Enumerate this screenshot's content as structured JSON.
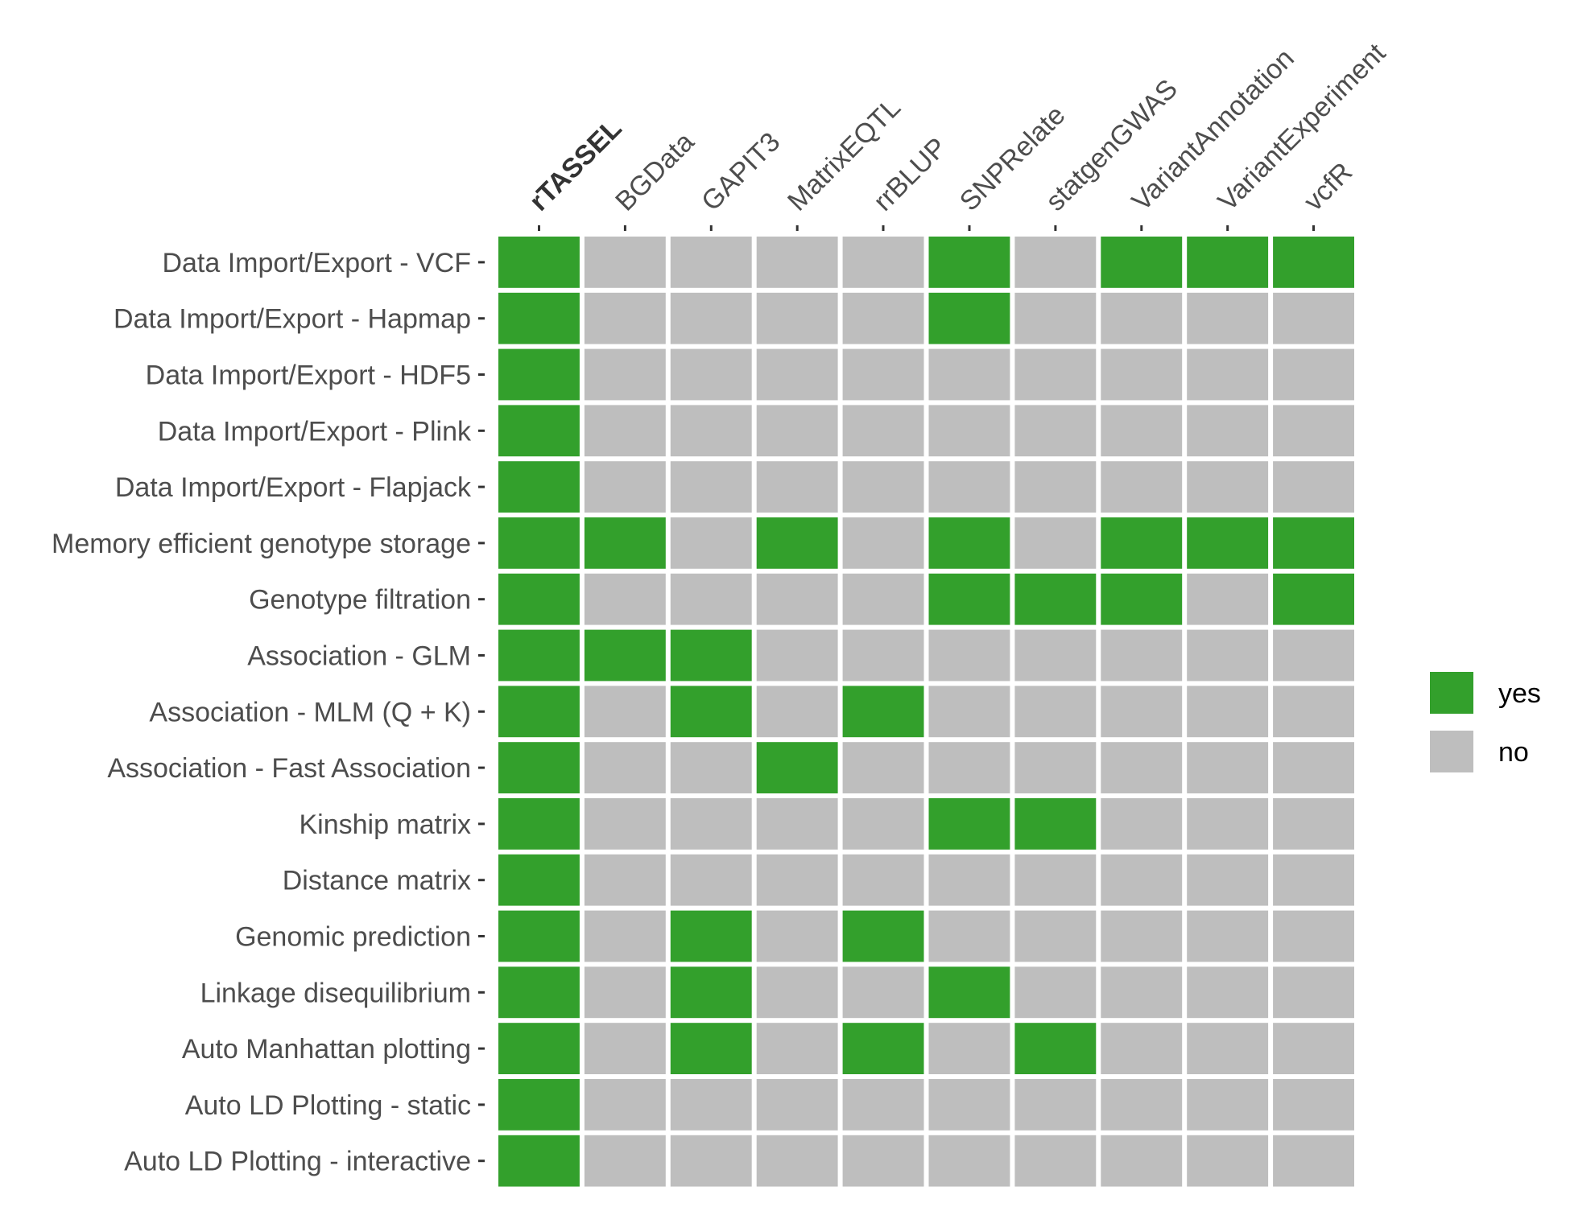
{
  "chart_data": {
    "type": "heatmap",
    "title": "",
    "xlabel": "",
    "ylabel": "",
    "columns": [
      "rTASSEL",
      "BGData",
      "GAPIT3",
      "MatrixEQTL",
      "rrBLUP",
      "SNPRelate",
      "statgenGWAS",
      "VariantAnnotation",
      "VariantExperiment",
      "vcfR"
    ],
    "highlighted_column": "rTASSEL",
    "rows": [
      "Data Import/Export - VCF",
      "Data Import/Export - Hapmap",
      "Data Import/Export - HDF5",
      "Data Import/Export - Plink",
      "Data Import/Export - Flapjack",
      "Memory efficient genotype storage",
      "Genotype filtration",
      "Association - GLM",
      "Association - MLM (Q + K)",
      "Association - Fast Association",
      "Kinship matrix",
      "Distance matrix",
      "Genomic prediction",
      "Linkage disequilibrium",
      "Auto Manhattan plotting",
      "Auto LD Plotting - static",
      "Auto LD Plotting - interactive"
    ],
    "values": [
      [
        "yes",
        "no",
        "no",
        "no",
        "no",
        "yes",
        "no",
        "yes",
        "yes",
        "yes"
      ],
      [
        "yes",
        "no",
        "no",
        "no",
        "no",
        "yes",
        "no",
        "no",
        "no",
        "no"
      ],
      [
        "yes",
        "no",
        "no",
        "no",
        "no",
        "no",
        "no",
        "no",
        "no",
        "no"
      ],
      [
        "yes",
        "no",
        "no",
        "no",
        "no",
        "no",
        "no",
        "no",
        "no",
        "no"
      ],
      [
        "yes",
        "no",
        "no",
        "no",
        "no",
        "no",
        "no",
        "no",
        "no",
        "no"
      ],
      [
        "yes",
        "yes",
        "no",
        "yes",
        "no",
        "yes",
        "no",
        "yes",
        "yes",
        "yes"
      ],
      [
        "yes",
        "no",
        "no",
        "no",
        "no",
        "yes",
        "yes",
        "yes",
        "no",
        "yes"
      ],
      [
        "yes",
        "yes",
        "yes",
        "no",
        "no",
        "no",
        "no",
        "no",
        "no",
        "no"
      ],
      [
        "yes",
        "no",
        "yes",
        "no",
        "yes",
        "no",
        "no",
        "no",
        "no",
        "no"
      ],
      [
        "yes",
        "no",
        "no",
        "yes",
        "no",
        "no",
        "no",
        "no",
        "no",
        "no"
      ],
      [
        "yes",
        "no",
        "no",
        "no",
        "no",
        "yes",
        "yes",
        "no",
        "no",
        "no"
      ],
      [
        "yes",
        "no",
        "no",
        "no",
        "no",
        "no",
        "no",
        "no",
        "no",
        "no"
      ],
      [
        "yes",
        "no",
        "yes",
        "no",
        "yes",
        "no",
        "no",
        "no",
        "no",
        "no"
      ],
      [
        "yes",
        "no",
        "yes",
        "no",
        "no",
        "yes",
        "no",
        "no",
        "no",
        "no"
      ],
      [
        "yes",
        "no",
        "yes",
        "no",
        "yes",
        "no",
        "yes",
        "no",
        "no",
        "no"
      ],
      [
        "yes",
        "no",
        "no",
        "no",
        "no",
        "no",
        "no",
        "no",
        "no",
        "no"
      ],
      [
        "yes",
        "no",
        "no",
        "no",
        "no",
        "no",
        "no",
        "no",
        "no",
        "no"
      ]
    ],
    "legend": {
      "position": "right",
      "items": [
        {
          "key": "yes",
          "label": "yes",
          "color": "#33a02c"
        },
        {
          "key": "no",
          "label": "no",
          "color": "#bebebe"
        }
      ]
    },
    "grid": false
  },
  "colors": {
    "yes": "#33a02c",
    "no": "#bebebe",
    "text": "#4d4d4d",
    "tick": "#333333",
    "background": "#ffffff"
  }
}
